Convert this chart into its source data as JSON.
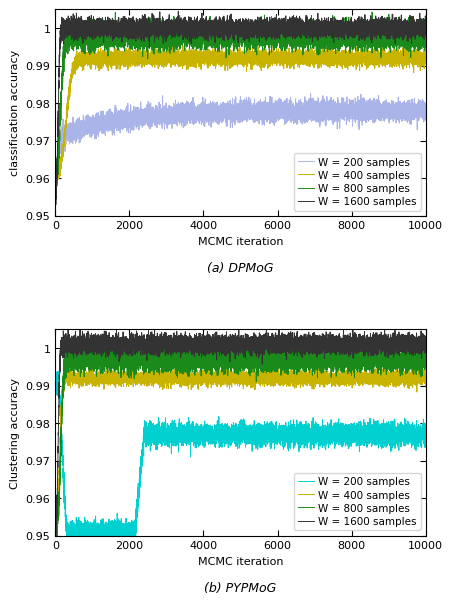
{
  "fig_width": 4.41,
  "fig_height": 5.98,
  "dpi": 100,
  "subplot_a": {
    "caption": "(a) DPMoG",
    "ylabel": "classification accuracy",
    "xlabel": "MCMC iteration",
    "xlim": [
      0,
      10000
    ],
    "ylim": [
      0.95,
      1.005
    ],
    "yticks": [
      0.95,
      0.96,
      0.97,
      0.98,
      0.99,
      1.0
    ],
    "xticks": [
      0,
      2000,
      4000,
      6000,
      8000,
      10000
    ],
    "series": {
      "W200": {
        "label": "W = 200 samples",
        "color": "#aab4e8",
        "linewidth": 0.7
      },
      "W400": {
        "label": "W = 400 samples",
        "color": "#c8b400",
        "linewidth": 0.7
      },
      "W800": {
        "label": "W = 800 samples",
        "color": "#1a8a1a",
        "linewidth": 0.7
      },
      "W1600": {
        "label": "W = 1600 samples",
        "color": "#333333",
        "linewidth": 0.7
      }
    }
  },
  "subplot_b": {
    "caption": "(b) PYPMoG",
    "ylabel": "Clustering accuracy",
    "xlabel": "MCMC iteration",
    "xlim": [
      0,
      10000
    ],
    "ylim": [
      0.95,
      1.005
    ],
    "yticks": [
      0.95,
      0.96,
      0.97,
      0.98,
      0.99,
      1.0
    ],
    "xticks": [
      0,
      2000,
      4000,
      6000,
      8000,
      10000
    ],
    "series": {
      "W200": {
        "label": "W = 200 samples",
        "color": "#00d0d0",
        "linewidth": 0.7
      },
      "W400": {
        "label": "W = 400 samples",
        "color": "#c8b400",
        "linewidth": 0.7
      },
      "W800": {
        "label": "W = 800 samples",
        "color": "#1a8a1a",
        "linewidth": 0.7
      },
      "W1600": {
        "label": "W = 1600 samples",
        "color": "#333333",
        "linewidth": 0.7
      }
    }
  },
  "legend": {
    "fontsize": 7.5,
    "frameon": true
  }
}
